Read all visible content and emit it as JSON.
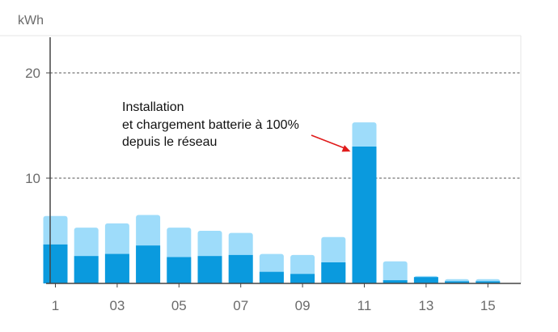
{
  "chart_data": {
    "type": "bar",
    "stacked": true,
    "unit_label": "kWh",
    "categories": [
      "1",
      "2",
      "3",
      "4",
      "5",
      "6",
      "7",
      "8",
      "9",
      "10",
      "11",
      "12",
      "13",
      "14",
      "15"
    ],
    "x_tick_labels": [
      "1",
      "03",
      "05",
      "07",
      "09",
      "11",
      "13",
      "15"
    ],
    "x_tick_categories": [
      "1",
      "3",
      "5",
      "7",
      "9",
      "11",
      "13",
      "15"
    ],
    "y_tick_labels": [
      "10",
      "20"
    ],
    "y_ticks": [
      10,
      20
    ],
    "ylim": [
      0,
      23.3
    ],
    "series": [
      {
        "values": [
          3.7,
          2.6,
          2.8,
          3.6,
          2.5,
          2.6,
          2.7,
          1.1,
          0.9,
          2.0,
          13.0,
          0.3,
          0.6,
          0.2,
          0.2
        ]
      },
      {
        "values": [
          2.7,
          2.7,
          2.9,
          2.9,
          2.8,
          2.4,
          2.1,
          1.7,
          1.8,
          2.4,
          2.3,
          1.8,
          0.1,
          0.2,
          0.2
        ]
      }
    ],
    "grid": {
      "horizontal": true,
      "style": "dashed"
    },
    "annotation": {
      "lines": [
        "Installation",
        "et chargement batterie à 100%",
        "depuis le réseau"
      ],
      "points_to_category": "11"
    },
    "colors": {
      "series_dark": "#0a9ade",
      "series_light": "#9edcfa",
      "axis": "#444444",
      "grid": "#555555",
      "arrow": "#e01b1b"
    }
  }
}
